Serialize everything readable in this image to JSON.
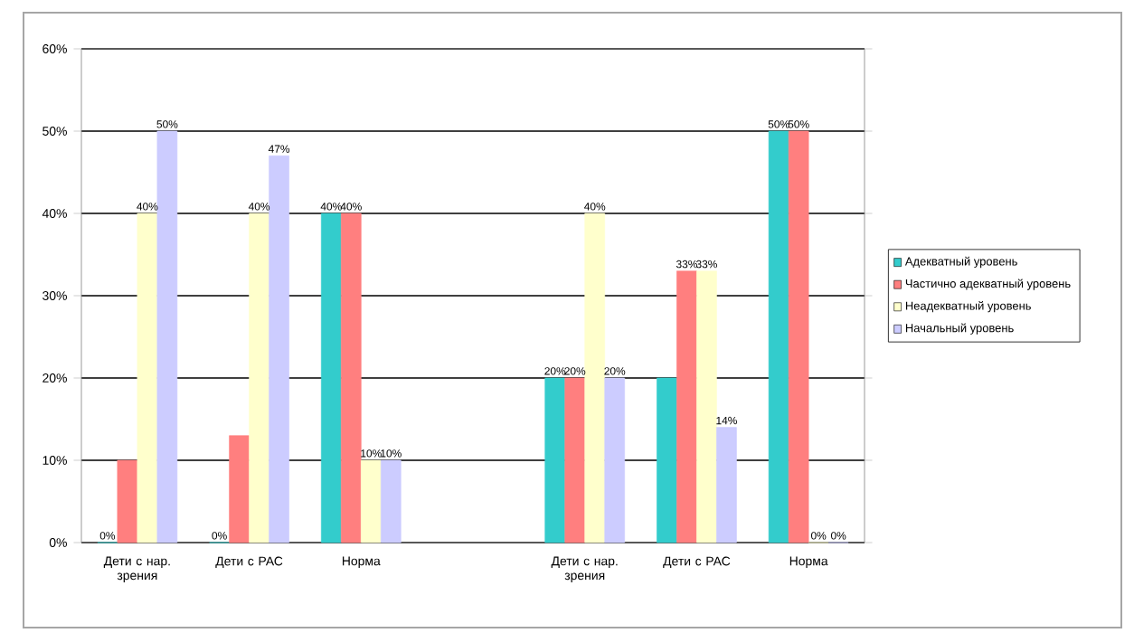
{
  "chart_data": {
    "type": "bar",
    "categories": [
      "Дети с нар. зрения",
      "Дети с РАС",
      "Норма",
      null,
      "Дети с нар. зрения",
      "Дети с РАС",
      "Норма"
    ],
    "series": [
      {
        "name": "Адекватный уровень",
        "color": "#33cccc",
        "values": [
          0,
          0,
          40,
          null,
          20,
          20,
          50
        ],
        "value_labels": [
          "0%",
          "0%",
          "40%",
          null,
          "20%",
          null,
          "50%"
        ]
      },
      {
        "name": "Частично адекватный уровень",
        "color": "#ff7f7f",
        "values": [
          10,
          13,
          40,
          null,
          20,
          33,
          50
        ],
        "value_labels": [
          null,
          null,
          "40%",
          null,
          "20%",
          "33%",
          "50%"
        ]
      },
      {
        "name": "Неадекватный уровень",
        "color": "#ffffcc",
        "values": [
          40,
          40,
          10,
          null,
          40,
          33,
          0
        ],
        "value_labels": [
          "40%",
          "40%",
          "10%",
          null,
          "40%",
          "33%",
          "0%"
        ]
      },
      {
        "name": "Начальный уровень",
        "color": "#ccccff",
        "values": [
          50,
          47,
          10,
          null,
          20,
          14,
          0
        ],
        "value_labels": [
          "50%",
          "47%",
          "10%",
          null,
          "20%",
          "14%",
          "0%"
        ]
      }
    ],
    "ylim": [
      0,
      60
    ],
    "yticks": [
      {
        "value": 0,
        "label": "0%"
      },
      {
        "value": 10,
        "label": "10%"
      },
      {
        "value": 20,
        "label": "20%"
      },
      {
        "value": 30,
        "label": "30%"
      },
      {
        "value": 40,
        "label": "40%"
      },
      {
        "value": 50,
        "label": "50%"
      },
      {
        "value": 60,
        "label": "60%"
      }
    ],
    "grid": "y",
    "legend": "right"
  }
}
